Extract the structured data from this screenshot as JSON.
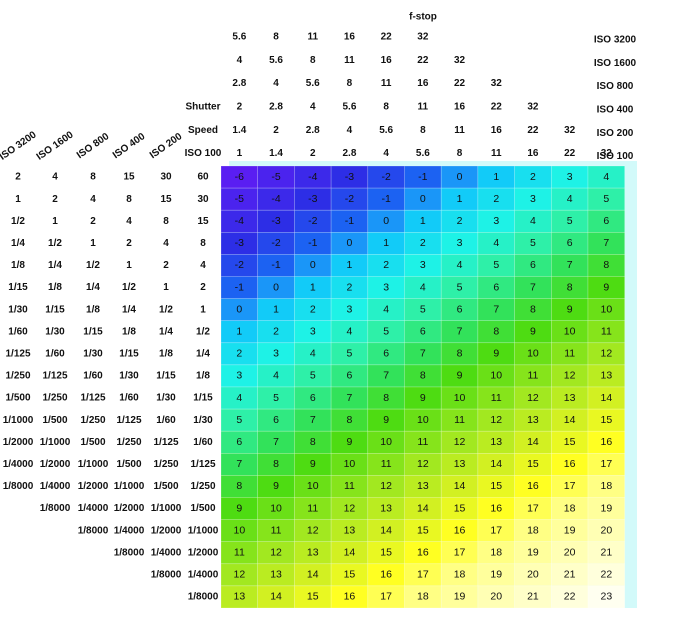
{
  "fstop_header": {
    "title": "f-stop",
    "rows": [
      {
        "label": "ISO 3200",
        "values": [
          5.6,
          8,
          11,
          16,
          22,
          32
        ]
      },
      {
        "label": "ISO 1600",
        "values": [
          4,
          5.6,
          8,
          11,
          16,
          22,
          32
        ]
      },
      {
        "label": "ISO 800",
        "values": [
          2.8,
          4,
          5.6,
          8,
          11,
          16,
          22,
          32
        ]
      },
      {
        "label": "ISO 400",
        "values": [
          2,
          2.8,
          4,
          5.6,
          8,
          11,
          16,
          22,
          32
        ]
      },
      {
        "label": "ISO 200",
        "values": [
          1.4,
          2,
          2.8,
          4,
          5.6,
          8,
          11,
          16,
          22,
          32
        ]
      },
      {
        "label": "ISO 100",
        "values": [
          1,
          1.4,
          2,
          2.8,
          4,
          5.6,
          8,
          11,
          16,
          22,
          32
        ]
      }
    ]
  },
  "shutter_table": {
    "columns": [
      {
        "label": "ISO 3200",
        "values": [
          "2",
          "1",
          "1/2",
          "1/4",
          "1/8",
          "1/15",
          "1/30",
          "1/60",
          "1/125",
          "1/250",
          "1/500",
          "1/1000",
          "1/2000",
          "1/4000",
          "1/8000"
        ]
      },
      {
        "label": "ISO 1600",
        "values": [
          "4",
          "2",
          "1",
          "1/2",
          "1/4",
          "1/8",
          "1/15",
          "1/30",
          "1/60",
          "1/125",
          "1/250",
          "1/500",
          "1/1000",
          "1/2000",
          "1/4000",
          "1/8000"
        ]
      },
      {
        "label": "ISO 800",
        "values": [
          "8",
          "4",
          "2",
          "1",
          "1/2",
          "1/4",
          "1/8",
          "1/15",
          "1/30",
          "1/60",
          "1/125",
          "1/250",
          "1/500",
          "1/1000",
          "1/2000",
          "1/4000",
          "1/8000"
        ]
      },
      {
        "label": "ISO 400",
        "values": [
          "15",
          "8",
          "4",
          "2",
          "1",
          "1/2",
          "1/4",
          "1/8",
          "1/15",
          "1/30",
          "1/60",
          "1/125",
          "1/250",
          "1/500",
          "1/1000",
          "1/2000",
          "1/4000",
          "1/8000"
        ]
      },
      {
        "label": "ISO 200",
        "values": [
          "30",
          "15",
          "8",
          "4",
          "2",
          "1",
          "1/2",
          "1/4",
          "1/8",
          "1/15",
          "1/30",
          "1/60",
          "1/125",
          "1/250",
          "1/500",
          "1/1000",
          "1/2000",
          "1/4000",
          "1/8000"
        ]
      },
      {
        "label_lines": [
          "Shutter",
          "Speed",
          "ISO 100"
        ],
        "values": [
          "60",
          "30",
          "15",
          "8",
          "4",
          "2",
          "1",
          "1/2",
          "1/4",
          "1/8",
          "1/15",
          "1/30",
          "1/60",
          "1/125",
          "1/250",
          "1/500",
          "1/1000",
          "1/2000",
          "1/4000",
          "1/8000"
        ]
      }
    ]
  },
  "ev_grid": {
    "highlight": {
      "values": [
        0,
        8,
        16
      ],
      "color": "#e3321c"
    },
    "color_scale": [
      {
        "value": -6,
        "color": "#5a1ef2"
      },
      {
        "value": -3,
        "color": "#2d2ee6"
      },
      {
        "value": -1,
        "color": "#1c62f2"
      },
      {
        "value": 0,
        "color": "#1a96f8"
      },
      {
        "value": 1,
        "color": "#12cbf8"
      },
      {
        "value": 3,
        "color": "#1ef2e6"
      },
      {
        "value": 5,
        "color": "#2ef0a8"
      },
      {
        "value": 7,
        "color": "#32e25a"
      },
      {
        "value": 9,
        "color": "#4edc12"
      },
      {
        "value": 12,
        "color": "#a2e820"
      },
      {
        "value": 14,
        "color": "#d2f022"
      },
      {
        "value": 16,
        "color": "#ffff22"
      },
      {
        "value": 18,
        "color": "#ffff84"
      },
      {
        "value": 20,
        "color": "#ffffb4"
      },
      {
        "value": 23,
        "color": "#fffff0"
      }
    ],
    "rows": [
      [
        -6,
        -5,
        -4,
        -3,
        -2,
        -1,
        0,
        1,
        2,
        3,
        4
      ],
      [
        -5,
        -4,
        -3,
        -2,
        -1,
        0,
        1,
        2,
        3,
        4,
        5
      ],
      [
        -4,
        -3,
        -2,
        -1,
        0,
        1,
        2,
        3,
        4,
        5,
        6
      ],
      [
        -3,
        -2,
        -1,
        0,
        1,
        2,
        3,
        4,
        5,
        6,
        7
      ],
      [
        -2,
        -1,
        0,
        1,
        2,
        3,
        4,
        5,
        6,
        7,
        8
      ],
      [
        -1,
        0,
        1,
        2,
        3,
        4,
        5,
        6,
        7,
        8,
        9
      ],
      [
        0,
        1,
        2,
        3,
        4,
        5,
        6,
        7,
        8,
        9,
        10
      ],
      [
        1,
        2,
        3,
        4,
        5,
        6,
        7,
        8,
        9,
        10,
        11
      ],
      [
        2,
        3,
        4,
        5,
        6,
        7,
        8,
        9,
        10,
        11,
        12
      ],
      [
        3,
        4,
        5,
        6,
        7,
        8,
        9,
        10,
        11,
        12,
        13
      ],
      [
        4,
        5,
        6,
        7,
        8,
        9,
        10,
        11,
        12,
        13,
        14
      ],
      [
        5,
        6,
        7,
        8,
        9,
        10,
        11,
        12,
        13,
        14,
        15
      ],
      [
        6,
        7,
        8,
        9,
        10,
        11,
        12,
        13,
        14,
        15,
        16
      ],
      [
        7,
        8,
        9,
        10,
        11,
        12,
        13,
        14,
        15,
        16,
        17
      ],
      [
        8,
        9,
        10,
        11,
        12,
        13,
        14,
        15,
        16,
        17,
        18
      ],
      [
        9,
        10,
        11,
        12,
        13,
        14,
        15,
        16,
        17,
        18,
        19
      ],
      [
        10,
        11,
        12,
        13,
        14,
        15,
        16,
        17,
        18,
        19,
        20
      ],
      [
        11,
        12,
        13,
        14,
        15,
        16,
        17,
        18,
        19,
        20,
        21
      ],
      [
        12,
        13,
        14,
        15,
        16,
        17,
        18,
        19,
        20,
        21,
        22
      ],
      [
        13,
        14,
        15,
        16,
        17,
        18,
        19,
        20,
        21,
        22,
        23
      ]
    ]
  }
}
